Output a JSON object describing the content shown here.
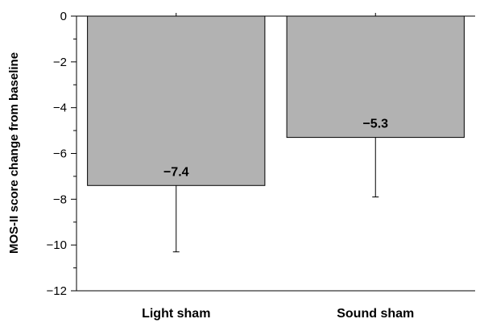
{
  "chart_data": {
    "type": "bar",
    "categories": [
      "Light sham",
      "Sound sham"
    ],
    "values": [
      -7.4,
      -5.3
    ],
    "error_lower": [
      -10.3,
      -7.9
    ],
    "data_labels": [
      "−7.4",
      "−5.3"
    ],
    "title": "",
    "xlabel": "",
    "ylabel": "MOS-II score change from baseline",
    "ylim": [
      -12,
      0
    ],
    "yticks": [
      0,
      -2,
      -4,
      -6,
      -8,
      -10,
      -12
    ],
    "ytick_labels": [
      "0",
      "−2",
      "−4",
      "−6",
      "−8",
      "−10",
      "−12"
    ],
    "bar_color": "#b2b2b2",
    "edge_color": "#000000",
    "grid": false
  }
}
